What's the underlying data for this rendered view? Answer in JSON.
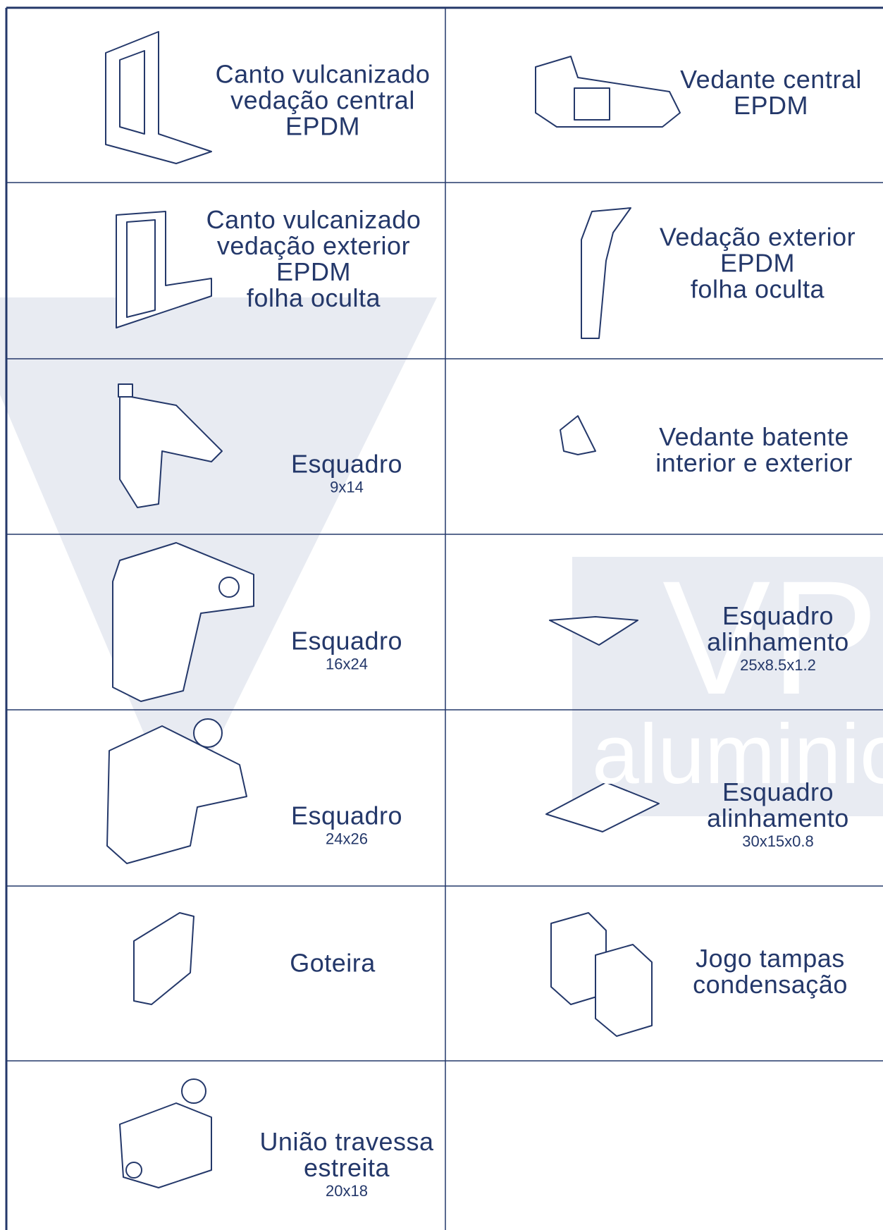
{
  "watermark": {
    "brand": "VP",
    "word": "aluminio"
  },
  "items": [
    {
      "lines": [
        "Canto vulcanizado",
        "vedação central",
        "EPDM"
      ]
    },
    {
      "lines": [
        "Vedante central",
        "EPDM"
      ]
    },
    {
      "lines": [
        "Canto vulcanizado",
        "vedação exterior",
        "EPDM",
        "folha oculta"
      ]
    },
    {
      "lines": [
        "Vedação exterior",
        "EPDM",
        "folha oculta"
      ]
    },
    {
      "lines": [
        "Esquadro"
      ],
      "size": "9x14"
    },
    {
      "lines": [
        "Vedante batente",
        "interior e exterior"
      ]
    },
    {
      "lines": [
        "Esquadro"
      ],
      "size": "16x24"
    },
    {
      "lines": [
        "Esquadro",
        "alinhamento"
      ],
      "size": "25x8.5x1.2"
    },
    {
      "lines": [
        "Esquadro"
      ],
      "size": "24x26"
    },
    {
      "lines": [
        "Esquadro",
        "alinhamento"
      ],
      "size": "30x15x0.8"
    },
    {
      "lines": [
        "Goteira"
      ]
    },
    {
      "lines": [
        "Jogo tampas",
        "condensação"
      ]
    },
    {
      "lines": [
        "União travessa",
        "estreita"
      ],
      "size": "20x18"
    }
  ]
}
